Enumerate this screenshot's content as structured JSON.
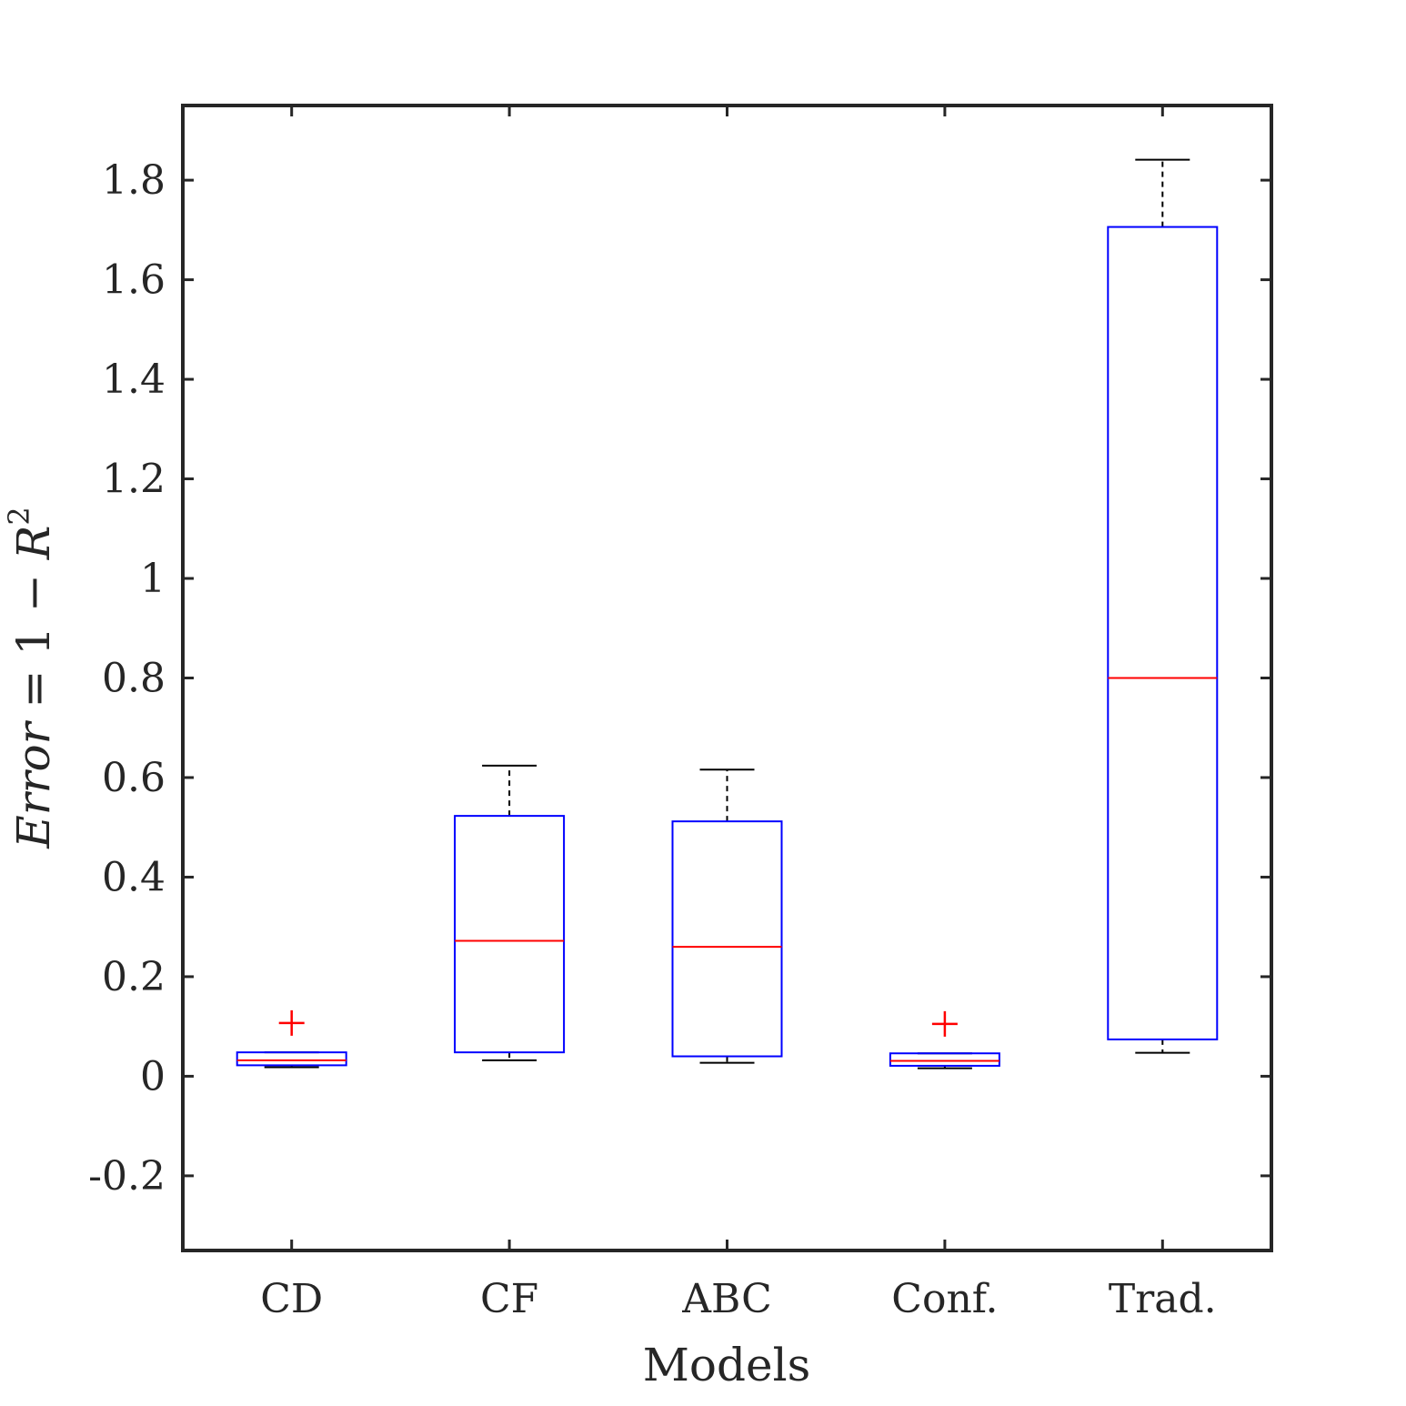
{
  "chart_data": {
    "type": "box",
    "xlabel": "Models",
    "ylabel": {
      "var": "Error",
      "eq": " = 1 − ",
      "r": "R",
      "sup": "2"
    },
    "ylim": [
      -0.35,
      1.95
    ],
    "yticks": [
      -0.2,
      0,
      0.2,
      0.4,
      0.6,
      0.8,
      1,
      1.2,
      1.4,
      1.6,
      1.8
    ],
    "ytick_labels": [
      "-0.2",
      "0",
      "0.2",
      "0.4",
      "0.6",
      "0.8",
      "1",
      "1.2",
      "1.4",
      "1.6",
      "1.8"
    ],
    "categories": [
      "CD",
      "CF",
      "ABC",
      "Conf.",
      "Trad."
    ],
    "boxes": [
      {
        "whisker_low": 0.018,
        "q1": 0.022,
        "median": 0.032,
        "q3": 0.048,
        "whisker_high": 0.048,
        "outliers": [
          0.107
        ]
      },
      {
        "whisker_low": 0.032,
        "q1": 0.048,
        "median": 0.272,
        "q3": 0.523,
        "whisker_high": 0.624,
        "outliers": []
      },
      {
        "whisker_low": 0.027,
        "q1": 0.04,
        "median": 0.26,
        "q3": 0.512,
        "whisker_high": 0.616,
        "outliers": []
      },
      {
        "whisker_low": 0.016,
        "q1": 0.021,
        "median": 0.031,
        "q3": 0.046,
        "whisker_high": 0.046,
        "outliers": [
          0.105
        ]
      },
      {
        "whisker_low": 0.047,
        "q1": 0.074,
        "median": 0.8,
        "q3": 1.706,
        "whisker_high": 1.841,
        "outliers": []
      }
    ],
    "colors": {
      "box": "#0000ff",
      "median": "#ff0000",
      "outlier": "#ff0000",
      "whisker": "#000000",
      "axes": "#262626"
    },
    "grid": false,
    "legend": "none"
  }
}
